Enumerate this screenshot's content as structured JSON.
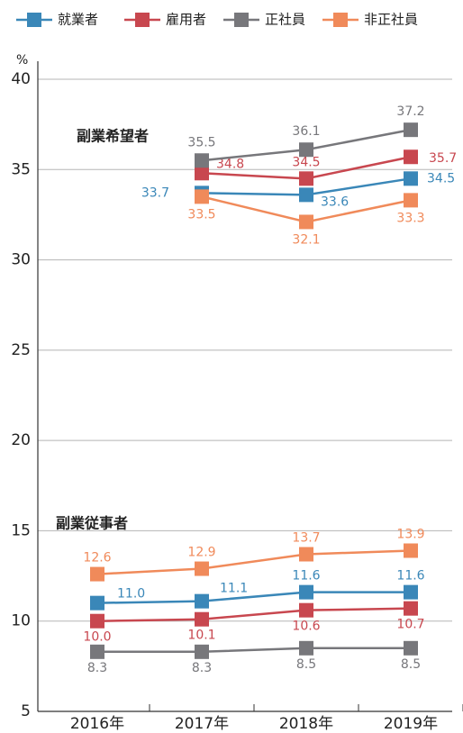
{
  "chart_data": {
    "type": "line",
    "y_unit": "%",
    "categories": [
      "2016年",
      "2017年",
      "2018年",
      "2019年"
    ],
    "series": [
      {
        "name": "就業者",
        "color": "#3a87b8"
      },
      {
        "name": "雇用者",
        "color": "#c8474f"
      },
      {
        "name": "正社員",
        "color": "#77777b"
      },
      {
        "name": "非正社員",
        "color": "#f08a5a"
      }
    ],
    "groups": [
      {
        "label": "副業希望者",
        "series": [
          {
            "values": [
              null,
              33.7,
              33.6,
              34.5
            ],
            "value_labels": [
              null,
              "33.7",
              "33.6",
              "34.5"
            ]
          },
          {
            "values": [
              null,
              34.8,
              34.5,
              35.7
            ],
            "value_labels": [
              null,
              "34.8",
              "34.5",
              "35.7"
            ]
          },
          {
            "values": [
              null,
              35.5,
              36.1,
              37.2
            ],
            "value_labels": [
              null,
              "35.5",
              "36.1",
              "37.2"
            ]
          },
          {
            "values": [
              null,
              33.5,
              32.1,
              33.3
            ],
            "value_labels": [
              null,
              "33.5",
              "32.1",
              "33.3"
            ]
          }
        ]
      },
      {
        "label": "副業従事者",
        "series": [
          {
            "values": [
              11.0,
              11.1,
              11.6,
              11.6
            ],
            "value_labels": [
              "11.0",
              "11.1",
              "11.6",
              "11.6"
            ]
          },
          {
            "values": [
              10.0,
              10.1,
              10.6,
              10.7
            ],
            "value_labels": [
              "10.0",
              "10.1",
              "10.6",
              "10.7"
            ]
          },
          {
            "values": [
              8.3,
              8.3,
              8.5,
              8.5
            ],
            "value_labels": [
              "8.3",
              "8.3",
              "8.5",
              "8.5"
            ]
          },
          {
            "values": [
              12.6,
              12.9,
              13.7,
              13.9
            ],
            "value_labels": [
              "12.6",
              "12.9",
              "13.7",
              "13.9"
            ]
          }
        ]
      }
    ],
    "ylim": [
      5,
      40
    ],
    "yticks": [
      5,
      10,
      15,
      20,
      25,
      30,
      35,
      40
    ],
    "grid": true
  }
}
